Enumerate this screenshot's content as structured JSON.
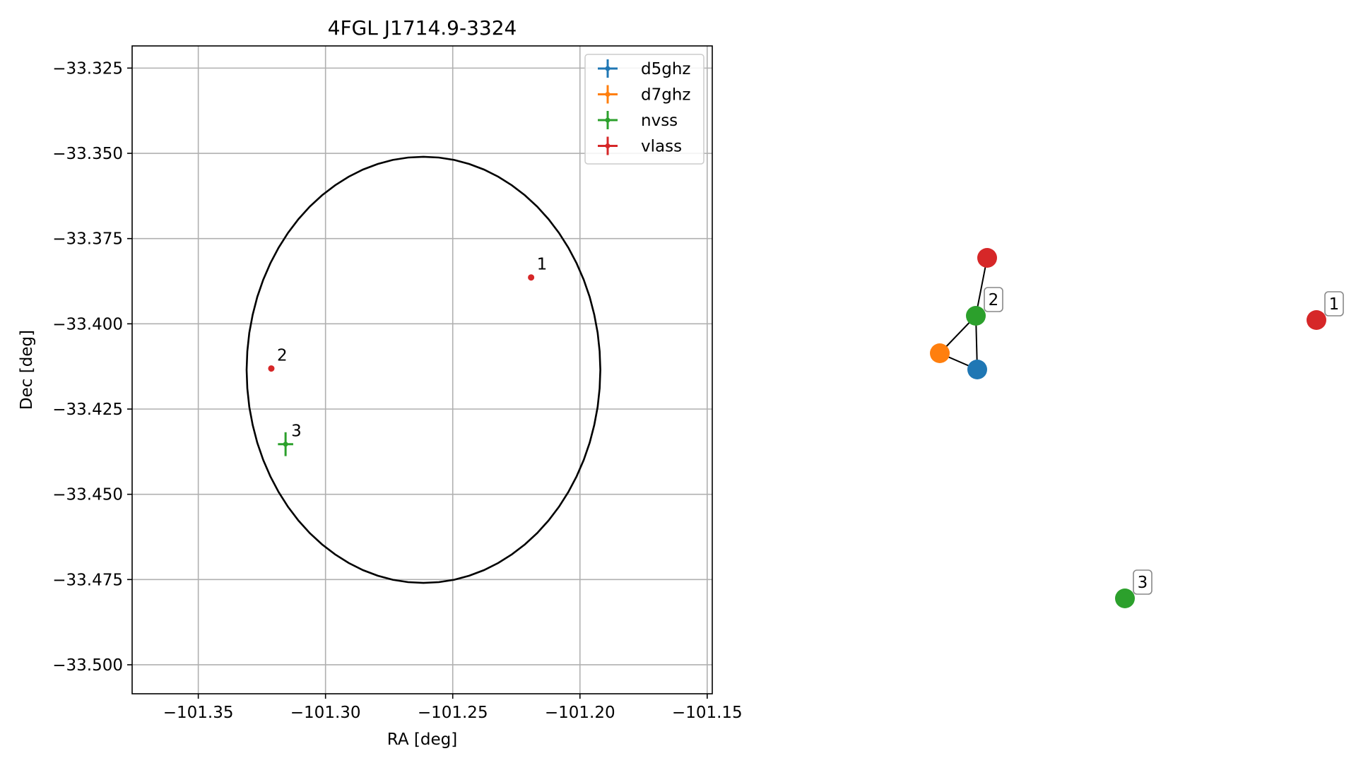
{
  "chart_data": [
    {
      "type": "scatter",
      "title": "4FGL J1714.9-3324",
      "xlabel": "RA [deg]",
      "ylabel": "Dec [deg]",
      "xlim": [
        -101.376,
        -101.148
      ],
      "ylim": [
        -33.5085,
        -33.3185
      ],
      "xticks": [
        -101.35,
        -101.3,
        -101.25,
        -101.2,
        -101.15
      ],
      "xtick_labels": [
        "−101.35",
        "−101.30",
        "−101.25",
        "−101.20",
        "−101.15"
      ],
      "yticks": [
        -33.325,
        -33.35,
        -33.375,
        -33.4,
        -33.425,
        -33.45,
        -33.475,
        -33.5
      ],
      "ytick_labels": [
        "−33.325",
        "−33.350",
        "−33.375",
        "−33.400",
        "−33.425",
        "−33.450",
        "−33.475",
        "−33.500"
      ],
      "grid": true,
      "legend": "top-right",
      "error_ellipse": {
        "center": [
          -101.2615,
          -33.4135
        ],
        "ra_semi_axis": 0.0695,
        "dec_semi_axis": 0.0625,
        "color": "#000000"
      },
      "series": [
        {
          "name": "d5ghz",
          "color": "#1f77b4",
          "points": []
        },
        {
          "name": "d7ghz",
          "color": "#ff7f0e",
          "points": []
        },
        {
          "name": "nvss",
          "color": "#2ca02c",
          "points": [
            {
              "x": -101.3157,
              "y": -33.4353,
              "label": "3",
              "xerr": 0.003,
              "yerr": 0.0035
            }
          ]
        },
        {
          "name": "vlass",
          "color": "#d62728",
          "points": [
            {
              "x": -101.2192,
              "y": -33.3864,
              "label": "1"
            },
            {
              "x": -101.3213,
              "y": -33.4131,
              "label": "2"
            }
          ]
        }
      ]
    },
    {
      "type": "network",
      "nodes": [
        {
          "id": "vlass-1",
          "color": "#d62728",
          "label": "1"
        },
        {
          "id": "vlass-2",
          "color": "#d62728",
          "label": ""
        },
        {
          "id": "nvss-2",
          "color": "#2ca02c",
          "label": "2"
        },
        {
          "id": "d7ghz-2",
          "color": "#ff7f0e",
          "label": ""
        },
        {
          "id": "d5ghz-2",
          "color": "#1f77b4",
          "label": ""
        },
        {
          "id": "nvss-3",
          "color": "#2ca02c",
          "label": "3"
        }
      ],
      "edges": [
        [
          "vlass-2",
          "nvss-2"
        ],
        [
          "nvss-2",
          "d7ghz-2"
        ],
        [
          "nvss-2",
          "d5ghz-2"
        ],
        [
          "d7ghz-2",
          "d5ghz-2"
        ]
      ]
    }
  ]
}
